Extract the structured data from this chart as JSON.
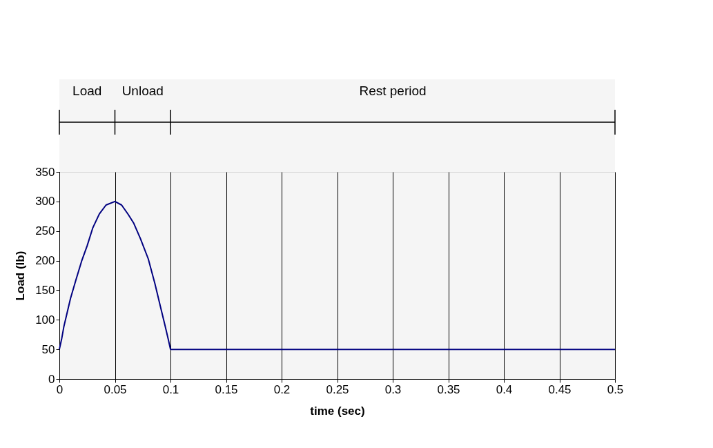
{
  "chart_data": {
    "type": "line",
    "xlabel": "time (sec)",
    "ylabel": "Load (lb)",
    "x": [
      0,
      0.002,
      0.004,
      0.007,
      0.01,
      0.015,
      0.02,
      0.025,
      0.03,
      0.036,
      0.042,
      0.05,
      0.056,
      0.062,
      0.067,
      0.073,
      0.08,
      0.086,
      0.091,
      0.095,
      0.098,
      0.1,
      0.5
    ],
    "series": [
      {
        "color": "#000080",
        "values": [
          50,
          67,
          88,
          112,
          136,
          168,
          199,
          225,
          255,
          279,
          294,
          300,
          294,
          278,
          263,
          237,
          203,
          161,
          122,
          91,
          67,
          50,
          50
        ]
      }
    ],
    "xlim": [
      0,
      0.5
    ],
    "xticks": [
      0,
      0.05,
      0.1,
      0.15,
      0.2,
      0.25,
      0.3,
      0.35,
      0.4,
      0.45,
      0.5
    ],
    "ylim": [
      0,
      350
    ],
    "yticks": [
      0,
      50,
      100,
      150,
      200,
      250,
      300,
      350
    ],
    "grid": "x",
    "marker": "none",
    "line_style": "solid",
    "bands": [
      {
        "axis": "x",
        "from": 0,
        "to": 0.05,
        "label": "Load"
      },
      {
        "axis": "x",
        "from": 0.05,
        "to": 0.1,
        "label": "Unload"
      },
      {
        "axis": "x",
        "from": 0.1,
        "to": 0.5,
        "label": "Rest period"
      }
    ]
  }
}
